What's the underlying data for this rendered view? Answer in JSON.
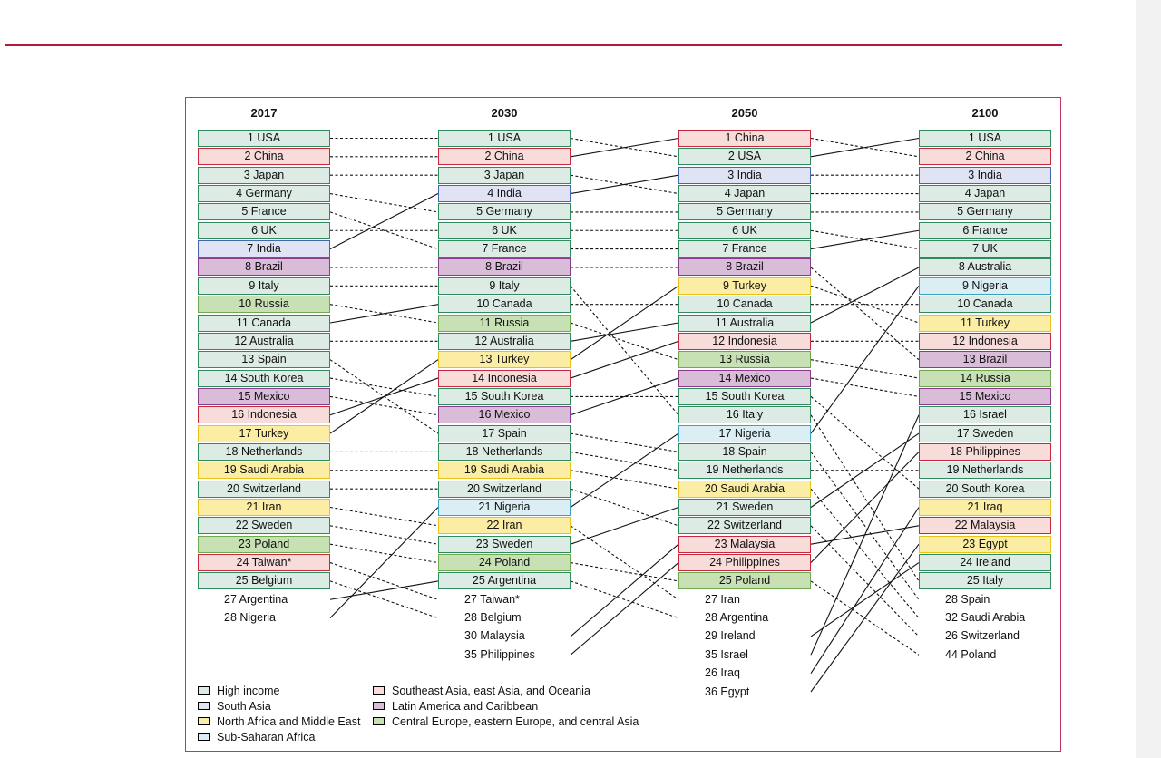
{
  "columns": [
    {
      "year": "2017",
      "items": [
        {
          "label": "1 USA",
          "cat": "hi",
          "id": "USA"
        },
        {
          "label": "2 China",
          "cat": "sea",
          "id": "China"
        },
        {
          "label": "3 Japan",
          "cat": "hi",
          "id": "Japan"
        },
        {
          "label": "4 Germany",
          "cat": "hi",
          "id": "Germany"
        },
        {
          "label": "5 France",
          "cat": "hi",
          "id": "France"
        },
        {
          "label": "6 UK",
          "cat": "hi",
          "id": "UK"
        },
        {
          "label": "7 India",
          "cat": "sa",
          "id": "India"
        },
        {
          "label": "8 Brazil",
          "cat": "la",
          "id": "Brazil"
        },
        {
          "label": "9 Italy",
          "cat": "hi",
          "id": "Italy"
        },
        {
          "label": "10 Russia",
          "cat": "ce",
          "id": "Russia"
        },
        {
          "label": "11 Canada",
          "cat": "hi",
          "id": "Canada"
        },
        {
          "label": "12 Australia",
          "cat": "hi",
          "id": "Australia"
        },
        {
          "label": "13 Spain",
          "cat": "hi",
          "id": "Spain"
        },
        {
          "label": "14 South Korea",
          "cat": "hi",
          "id": "South Korea"
        },
        {
          "label": "15 Mexico",
          "cat": "la",
          "id": "Mexico"
        },
        {
          "label": "16 Indonesia",
          "cat": "sea",
          "id": "Indonesia"
        },
        {
          "label": "17 Turkey",
          "cat": "na",
          "id": "Turkey"
        },
        {
          "label": "18 Netherlands",
          "cat": "hi",
          "id": "Netherlands"
        },
        {
          "label": "19 Saudi Arabia",
          "cat": "na",
          "id": "Saudi Arabia"
        },
        {
          "label": "20 Switzerland",
          "cat": "hi",
          "id": "Switzerland"
        },
        {
          "label": "21 Iran",
          "cat": "na",
          "id": "Iran"
        },
        {
          "label": "22 Sweden",
          "cat": "hi",
          "id": "Sweden"
        },
        {
          "label": "23 Poland",
          "cat": "ce",
          "id": "Poland"
        },
        {
          "label": "24 Taiwan*",
          "cat": "sea",
          "id": "Taiwan"
        },
        {
          "label": "25 Belgium",
          "cat": "hi",
          "id": "Belgium"
        },
        {
          "label": "27 Argentina",
          "cat": "none",
          "id": "Argentina"
        },
        {
          "label": "28 Nigeria",
          "cat": "none",
          "id": "Nigeria"
        }
      ]
    },
    {
      "year": "2030",
      "items": [
        {
          "label": "1 USA",
          "cat": "hi",
          "id": "USA"
        },
        {
          "label": "2 China",
          "cat": "sea",
          "id": "China"
        },
        {
          "label": "3 Japan",
          "cat": "hi",
          "id": "Japan"
        },
        {
          "label": "4 India",
          "cat": "sa",
          "id": "India"
        },
        {
          "label": "5 Germany",
          "cat": "hi",
          "id": "Germany"
        },
        {
          "label": "6 UK",
          "cat": "hi",
          "id": "UK"
        },
        {
          "label": "7 France",
          "cat": "hi",
          "id": "France"
        },
        {
          "label": "8 Brazil",
          "cat": "la",
          "id": "Brazil"
        },
        {
          "label": "9 Italy",
          "cat": "hi",
          "id": "Italy"
        },
        {
          "label": "10 Canada",
          "cat": "hi",
          "id": "Canada"
        },
        {
          "label": "11 Russia",
          "cat": "ce",
          "id": "Russia"
        },
        {
          "label": "12 Australia",
          "cat": "hi",
          "id": "Australia"
        },
        {
          "label": "13 Turkey",
          "cat": "na",
          "id": "Turkey"
        },
        {
          "label": "14 Indonesia",
          "cat": "sea",
          "id": "Indonesia"
        },
        {
          "label": "15 South Korea",
          "cat": "hi",
          "id": "South Korea"
        },
        {
          "label": "16 Mexico",
          "cat": "la",
          "id": "Mexico"
        },
        {
          "label": "17 Spain",
          "cat": "hi",
          "id": "Spain"
        },
        {
          "label": "18 Netherlands",
          "cat": "hi",
          "id": "Netherlands"
        },
        {
          "label": "19 Saudi Arabia",
          "cat": "na",
          "id": "Saudi Arabia"
        },
        {
          "label": "20 Switzerland",
          "cat": "hi",
          "id": "Switzerland"
        },
        {
          "label": "21 Nigeria",
          "cat": "ssa",
          "id": "Nigeria"
        },
        {
          "label": "22 Iran",
          "cat": "na",
          "id": "Iran"
        },
        {
          "label": "23 Sweden",
          "cat": "hi",
          "id": "Sweden"
        },
        {
          "label": "24 Poland",
          "cat": "ce",
          "id": "Poland"
        },
        {
          "label": "25 Argentina",
          "cat": "hi",
          "id": "Argentina"
        },
        {
          "label": "27 Taiwan*",
          "cat": "none",
          "id": "Taiwan"
        },
        {
          "label": "28 Belgium",
          "cat": "none",
          "id": "Belgium"
        },
        {
          "label": "30 Malaysia",
          "cat": "none",
          "id": "Malaysia"
        },
        {
          "label": "35 Philippines",
          "cat": "none",
          "id": "Philippines"
        }
      ]
    },
    {
      "year": "2050",
      "items": [
        {
          "label": "1 China",
          "cat": "sea",
          "id": "China"
        },
        {
          "label": "2 USA",
          "cat": "hi",
          "id": "USA"
        },
        {
          "label": "3 India",
          "cat": "sa",
          "id": "India"
        },
        {
          "label": "4 Japan",
          "cat": "hi",
          "id": "Japan"
        },
        {
          "label": "5 Germany",
          "cat": "hi",
          "id": "Germany"
        },
        {
          "label": "6 UK",
          "cat": "hi",
          "id": "UK"
        },
        {
          "label": "7 France",
          "cat": "hi",
          "id": "France"
        },
        {
          "label": "8 Brazil",
          "cat": "la",
          "id": "Brazil"
        },
        {
          "label": "9 Turkey",
          "cat": "na",
          "id": "Turkey"
        },
        {
          "label": "10 Canada",
          "cat": "hi",
          "id": "Canada"
        },
        {
          "label": "11 Australia",
          "cat": "hi",
          "id": "Australia"
        },
        {
          "label": "12 Indonesia",
          "cat": "sea",
          "id": "Indonesia"
        },
        {
          "label": "13 Russia",
          "cat": "ce",
          "id": "Russia"
        },
        {
          "label": "14 Mexico",
          "cat": "la",
          "id": "Mexico"
        },
        {
          "label": "15 South Korea",
          "cat": "hi",
          "id": "South Korea"
        },
        {
          "label": "16 Italy",
          "cat": "hi",
          "id": "Italy"
        },
        {
          "label": "17 Nigeria",
          "cat": "ssa",
          "id": "Nigeria"
        },
        {
          "label": "18 Spain",
          "cat": "hi",
          "id": "Spain"
        },
        {
          "label": "19 Netherlands",
          "cat": "hi",
          "id": "Netherlands"
        },
        {
          "label": "20 Saudi Arabia",
          "cat": "na",
          "id": "Saudi Arabia"
        },
        {
          "label": "21 Sweden",
          "cat": "hi",
          "id": "Sweden"
        },
        {
          "label": "22 Switzerland",
          "cat": "hi",
          "id": "Switzerland"
        },
        {
          "label": "23 Malaysia",
          "cat": "sea",
          "id": "Malaysia"
        },
        {
          "label": "24 Philippines",
          "cat": "sea",
          "id": "Philippines"
        },
        {
          "label": "25 Poland",
          "cat": "ce",
          "id": "Poland"
        },
        {
          "label": "27 Iran",
          "cat": "none",
          "id": "Iran"
        },
        {
          "label": "28 Argentina",
          "cat": "none",
          "id": "Argentina"
        },
        {
          "label": "29 Ireland",
          "cat": "none",
          "id": "Ireland"
        },
        {
          "label": "35 Israel",
          "cat": "none",
          "id": "Israel"
        },
        {
          "label": "26 Iraq",
          "cat": "none",
          "id": "Iraq"
        },
        {
          "label": "36 Egypt",
          "cat": "none",
          "id": "Egypt"
        }
      ]
    },
    {
      "year": "2100",
      "items": [
        {
          "label": "1 USA",
          "cat": "hi",
          "id": "USA"
        },
        {
          "label": "2 China",
          "cat": "sea",
          "id": "China"
        },
        {
          "label": "3 India",
          "cat": "sa",
          "id": "India"
        },
        {
          "label": "4 Japan",
          "cat": "hi",
          "id": "Japan"
        },
        {
          "label": "5 Germany",
          "cat": "hi",
          "id": "Germany"
        },
        {
          "label": "6 France",
          "cat": "hi",
          "id": "France"
        },
        {
          "label": "7 UK",
          "cat": "hi",
          "id": "UK"
        },
        {
          "label": "8 Australia",
          "cat": "hi",
          "id": "Australia"
        },
        {
          "label": "9 Nigeria",
          "cat": "ssa",
          "id": "Nigeria"
        },
        {
          "label": "10 Canada",
          "cat": "hi",
          "id": "Canada"
        },
        {
          "label": "11 Turkey",
          "cat": "na",
          "id": "Turkey"
        },
        {
          "label": "12 Indonesia",
          "cat": "sea",
          "id": "Indonesia"
        },
        {
          "label": "13 Brazil",
          "cat": "la",
          "id": "Brazil"
        },
        {
          "label": "14 Russia",
          "cat": "ce",
          "id": "Russia"
        },
        {
          "label": "15 Mexico",
          "cat": "la",
          "id": "Mexico"
        },
        {
          "label": "16 Israel",
          "cat": "hi",
          "id": "Israel"
        },
        {
          "label": "17 Sweden",
          "cat": "hi",
          "id": "Sweden"
        },
        {
          "label": "18 Philippines",
          "cat": "sea",
          "id": "Philippines"
        },
        {
          "label": "19 Netherlands",
          "cat": "hi",
          "id": "Netherlands"
        },
        {
          "label": "20 South Korea",
          "cat": "hi",
          "id": "South Korea"
        },
        {
          "label": "21 Iraq",
          "cat": "na",
          "id": "Iraq"
        },
        {
          "label": "22 Malaysia",
          "cat": "sea",
          "id": "Malaysia"
        },
        {
          "label": "23 Egypt",
          "cat": "na",
          "id": "Egypt"
        },
        {
          "label": "24 Ireland",
          "cat": "hi",
          "id": "Ireland"
        },
        {
          "label": "25 Italy",
          "cat": "hi",
          "id": "Italy"
        },
        {
          "label": "28 Spain",
          "cat": "none",
          "id": "Spain"
        },
        {
          "label": "32 Saudi Arabia",
          "cat": "none",
          "id": "Saudi Arabia"
        },
        {
          "label": "26 Switzerland",
          "cat": "none",
          "id": "Switzerland"
        },
        {
          "label": "44 Poland",
          "cat": "none",
          "id": "Poland"
        }
      ]
    }
  ],
  "legend": [
    {
      "label": "High income",
      "cat": "hi"
    },
    {
      "label": "South Asia",
      "cat": "sa"
    },
    {
      "label": "North Africa and Middle East",
      "cat": "na"
    },
    {
      "label": "Sub-Saharan Africa",
      "cat": "ssa"
    },
    {
      "label": "Southeast Asia, east Asia, and Oceania",
      "cat": "sea"
    },
    {
      "label": "Latin America and Caribbean",
      "cat": "la"
    },
    {
      "label": "Central Europe, eastern Europe, and central Asia",
      "cat": "ce"
    }
  ],
  "colors": {
    "accent_rule": "#b5193b",
    "hi": "#2f8a5e",
    "sa": "#4267ae",
    "na": "#e7c21c",
    "ssa": "#39a3c3",
    "sea": "#c6283e",
    "la": "#8a3a8c",
    "ce": "#6ea84f"
  }
}
